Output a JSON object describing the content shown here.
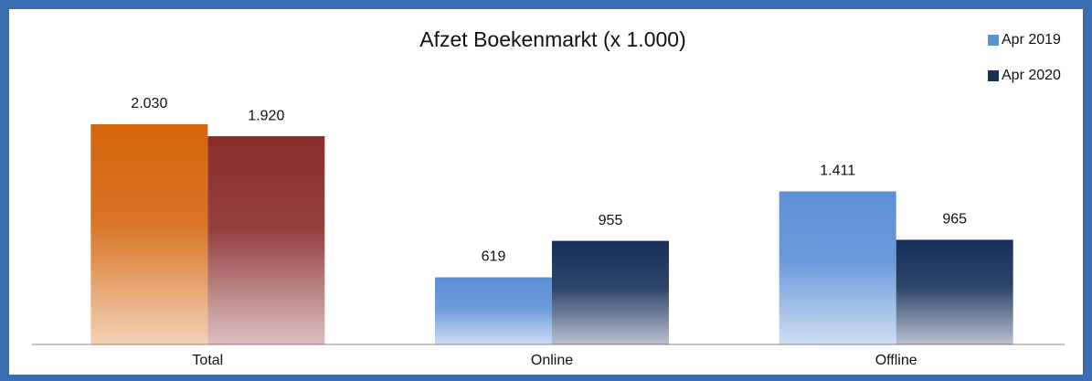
{
  "chart_data": {
    "type": "bar",
    "title": "Afzet Boekenmarkt (x 1.000)",
    "categories": [
      "Total",
      "Online",
      "Offline"
    ],
    "series": [
      {
        "name": "Apr 2019",
        "color": "#5b8fd6",
        "colors": [
          "#d4650c",
          "#5b8fd6",
          "#5b8fd6"
        ],
        "values": [
          2030,
          619,
          1411
        ],
        "value_labels": [
          "2.030",
          "619",
          "1.411"
        ]
      },
      {
        "name": "Apr 2020",
        "color": "#16305a",
        "colors": [
          "#8a2c2c",
          "#16305a",
          "#16305a"
        ],
        "values": [
          1920,
          955,
          965
        ],
        "value_labels": [
          "1.920",
          "955",
          "965"
        ]
      }
    ],
    "legend": "top-right"
  }
}
